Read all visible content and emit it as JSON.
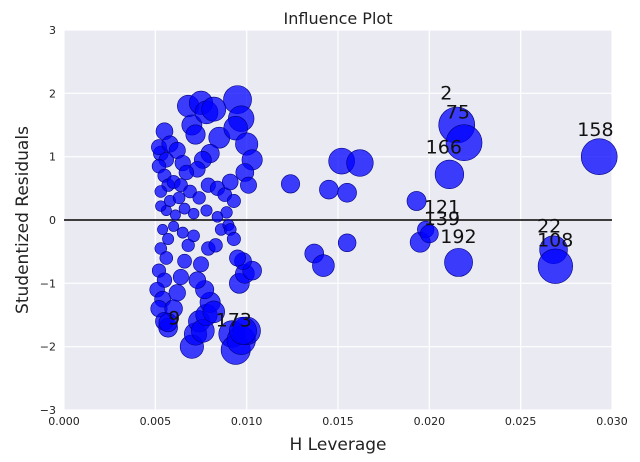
{
  "chart_data": {
    "type": "scatter",
    "title": "Influence Plot",
    "xlabel": "H Leverage",
    "ylabel": "Studentized Residuals",
    "xlim": [
      0.0,
      0.03
    ],
    "ylim": [
      -3,
      3
    ],
    "xticks": [
      "0.000",
      "0.005",
      "0.010",
      "0.015",
      "0.020",
      "0.025",
      "0.030"
    ],
    "yticks": [
      "−3",
      "−2",
      "−1",
      "0",
      "1",
      "2",
      "3"
    ],
    "grid": true,
    "background": "#eaeaf2",
    "marker_color": "#0000ff",
    "reference_line_y": 0,
    "points": [
      {
        "x": 0.0053,
        "y": 1.05
      },
      {
        "x": 0.0055,
        "y": 1.4
      },
      {
        "x": 0.0052,
        "y": 1.15
      },
      {
        "x": 0.0058,
        "y": 1.2
      },
      {
        "x": 0.0056,
        "y": 0.95
      },
      {
        "x": 0.0052,
        "y": 0.85
      },
      {
        "x": 0.0055,
        "y": 0.7
      },
      {
        "x": 0.0057,
        "y": 0.55
      },
      {
        "x": 0.0053,
        "y": 0.45
      },
      {
        "x": 0.006,
        "y": 0.6
      },
      {
        "x": 0.0062,
        "y": 1.1
      },
      {
        "x": 0.0065,
        "y": 0.9
      },
      {
        "x": 0.0068,
        "y": 1.8
      },
      {
        "x": 0.007,
        "y": 1.5
      },
      {
        "x": 0.0072,
        "y": 1.35
      },
      {
        "x": 0.0075,
        "y": 1.85
      },
      {
        "x": 0.0078,
        "y": 1.7
      },
      {
        "x": 0.0082,
        "y": 1.75
      },
      {
        "x": 0.0085,
        "y": 1.3
      },
      {
        "x": 0.008,
        "y": 1.05
      },
      {
        "x": 0.0076,
        "y": 0.95
      },
      {
        "x": 0.0073,
        "y": 0.8
      },
      {
        "x": 0.0067,
        "y": 0.75
      },
      {
        "x": 0.0064,
        "y": 0.55
      },
      {
        "x": 0.0069,
        "y": 0.45
      },
      {
        "x": 0.0074,
        "y": 0.35
      },
      {
        "x": 0.0079,
        "y": 0.55
      },
      {
        "x": 0.0084,
        "y": 0.5
      },
      {
        "x": 0.0088,
        "y": 0.4
      },
      {
        "x": 0.0091,
        "y": 0.6
      },
      {
        "x": 0.0095,
        "y": 1.9
      },
      {
        "x": 0.0097,
        "y": 1.6
      },
      {
        "x": 0.0094,
        "y": 1.45
      },
      {
        "x": 0.01,
        "y": 1.2
      },
      {
        "x": 0.0103,
        "y": 0.95
      },
      {
        "x": 0.0099,
        "y": 0.75
      },
      {
        "x": 0.0101,
        "y": 0.55
      },
      {
        "x": 0.0093,
        "y": 0.3
      },
      {
        "x": 0.0089,
        "y": 0.12
      },
      {
        "x": 0.0084,
        "y": 0.05
      },
      {
        "x": 0.0078,
        "y": 0.15
      },
      {
        "x": 0.0071,
        "y": 0.1
      },
      {
        "x": 0.0066,
        "y": 0.18
      },
      {
        "x": 0.0061,
        "y": 0.08
      },
      {
        "x": 0.0056,
        "y": 0.15
      },
      {
        "x": 0.0053,
        "y": 0.22
      },
      {
        "x": 0.0058,
        "y": 0.3
      },
      {
        "x": 0.0063,
        "y": 0.35
      },
      {
        "x": 0.0054,
        "y": -0.15
      },
      {
        "x": 0.0057,
        "y": -0.3
      },
      {
        "x": 0.0053,
        "y": -0.45
      },
      {
        "x": 0.0056,
        "y": -0.6
      },
      {
        "x": 0.0052,
        "y": -0.8
      },
      {
        "x": 0.0055,
        "y": -0.95
      },
      {
        "x": 0.0051,
        "y": -1.1
      },
      {
        "x": 0.0054,
        "y": -1.25
      },
      {
        "x": 0.0052,
        "y": -1.4
      },
      {
        "x": 0.0055,
        "y": -1.6
      },
      {
        "x": 0.0057,
        "y": -1.7
      },
      {
        "x": 0.006,
        "y": -1.4
      },
      {
        "x": 0.0062,
        "y": -1.15
      },
      {
        "x": 0.0064,
        "y": -0.9
      },
      {
        "x": 0.0066,
        "y": -0.65
      },
      {
        "x": 0.0068,
        "y": -0.4
      },
      {
        "x": 0.0065,
        "y": -0.2
      },
      {
        "x": 0.006,
        "y": -0.1
      },
      {
        "x": 0.007,
        "y": -2.0
      },
      {
        "x": 0.0072,
        "y": -1.8
      },
      {
        "x": 0.0074,
        "y": -1.6
      },
      {
        "x": 0.0076,
        "y": -1.75
      },
      {
        "x": 0.0078,
        "y": -1.5
      },
      {
        "x": 0.008,
        "y": -1.3
      },
      {
        "x": 0.0082,
        "y": -1.45
      },
      {
        "x": 0.0077,
        "y": -1.1
      },
      {
        "x": 0.0073,
        "y": -0.95
      },
      {
        "x": 0.0075,
        "y": -0.7
      },
      {
        "x": 0.0079,
        "y": -0.45
      },
      {
        "x": 0.0083,
        "y": -0.4
      },
      {
        "x": 0.0071,
        "y": -0.25
      },
      {
        "x": 0.0086,
        "y": -0.15
      },
      {
        "x": 0.009,
        "y": -0.08
      },
      {
        "x": 0.0092,
        "y": -1.8
      },
      {
        "x": 0.0094,
        "y": -2.05
      },
      {
        "x": 0.0097,
        "y": -1.9
      },
      {
        "x": 0.01,
        "y": -1.75
      },
      {
        "x": 0.0096,
        "y": -1.0
      },
      {
        "x": 0.0099,
        "y": -0.85
      },
      {
        "x": 0.0103,
        "y": -0.8
      },
      {
        "x": 0.0098,
        "y": -0.65
      },
      {
        "x": 0.0095,
        "y": -0.6
      },
      {
        "x": 0.0091,
        "y": -0.15
      },
      {
        "x": 0.0093,
        "y": -0.3
      },
      {
        "x": 0.0124,
        "y": 0.57
      },
      {
        "x": 0.0145,
        "y": 0.48
      },
      {
        "x": 0.0152,
        "y": 0.93
      },
      {
        "x": 0.0155,
        "y": 0.43
      },
      {
        "x": 0.0162,
        "y": 0.9
      },
      {
        "x": 0.0137,
        "y": -0.53
      },
      {
        "x": 0.0142,
        "y": -0.72
      },
      {
        "x": 0.0155,
        "y": -0.36
      },
      {
        "x": 0.0193,
        "y": 0.3
      },
      {
        "x": 0.0195,
        "y": -0.35
      },
      {
        "x": 0.0198,
        "y": -0.15
      },
      {
        "x": 0.02,
        "y": -0.22
      },
      {
        "x": 0.0211,
        "y": 0.72,
        "label": "166"
      },
      {
        "x": 0.0215,
        "y": 1.5,
        "label": "75"
      },
      {
        "x": 0.0219,
        "y": 1.22
      },
      {
        "x": 0.0216,
        "y": -0.67,
        "label": "192"
      },
      {
        "x": 0.0268,
        "y": -0.47
      },
      {
        "x": 0.0269,
        "y": -0.73,
        "label": "108"
      },
      {
        "x": 0.0293,
        "y": 1.0,
        "label": "158"
      },
      {
        "x": 0.0057,
        "y": -1.62,
        "label": "9"
      },
      {
        "x": 0.0098,
        "y": -1.75,
        "label": "173"
      }
    ],
    "annotations": [
      {
        "label": "2",
        "x": 0.0206,
        "y": 1.9
      },
      {
        "label": "75",
        "x": 0.0209,
        "y": 1.6
      },
      {
        "label": "166",
        "x": 0.0198,
        "y": 1.05
      },
      {
        "label": "158",
        "x": 0.0281,
        "y": 1.33
      },
      {
        "label": "121",
        "x": 0.0197,
        "y": 0.1
      },
      {
        "label": "139",
        "x": 0.0197,
        "y": -0.08
      },
      {
        "label": "192",
        "x": 0.0206,
        "y": -0.36
      },
      {
        "label": "22",
        "x": 0.0259,
        "y": -0.2
      },
      {
        "label": "108",
        "x": 0.0259,
        "y": -0.42
      },
      {
        "label": "9",
        "x": 0.0057,
        "y": -1.65
      },
      {
        "label": "173",
        "x": 0.0083,
        "y": -1.68
      }
    ]
  }
}
